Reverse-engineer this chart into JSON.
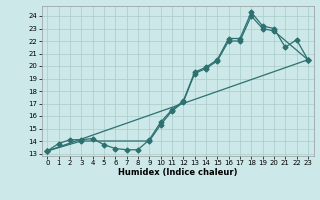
{
  "title": "",
  "xlabel": "Humidex (Indice chaleur)",
  "bg_color": "#cce8e8",
  "grid_color": "#aacccc",
  "line_color": "#2d7070",
  "markersize": 2.5,
  "linewidth": 0.9,
  "xlim": [
    -0.5,
    23.5
  ],
  "ylim": [
    12.8,
    24.8
  ],
  "xticks": [
    0,
    1,
    2,
    3,
    4,
    5,
    6,
    7,
    8,
    9,
    10,
    11,
    12,
    13,
    14,
    15,
    16,
    17,
    18,
    19,
    20,
    21,
    22,
    23
  ],
  "yticks": [
    13,
    14,
    15,
    16,
    17,
    18,
    19,
    20,
    21,
    22,
    23,
    24
  ],
  "line1_x": [
    0,
    1,
    2,
    3,
    4,
    5,
    6,
    7,
    8,
    9,
    10,
    11,
    12,
    13,
    14,
    15,
    16,
    17,
    18,
    19,
    20,
    21,
    22,
    23
  ],
  "line1_y": [
    13.2,
    13.8,
    14.1,
    14.1,
    14.2,
    13.7,
    13.4,
    13.3,
    13.3,
    14.1,
    15.5,
    16.5,
    17.2,
    19.5,
    19.9,
    20.5,
    22.2,
    22.2,
    24.3,
    23.2,
    23.0,
    21.5,
    22.1,
    20.5
  ],
  "line2_x": [
    0,
    3,
    9,
    10,
    11,
    12,
    13,
    14,
    15,
    16,
    17,
    18,
    19,
    20,
    23
  ],
  "line2_y": [
    13.2,
    14.0,
    14.0,
    15.3,
    16.4,
    17.1,
    19.4,
    19.8,
    20.4,
    22.0,
    22.0,
    24.0,
    23.0,
    22.8,
    20.5
  ],
  "line3_x": [
    0,
    23
  ],
  "line3_y": [
    13.2,
    20.5
  ]
}
